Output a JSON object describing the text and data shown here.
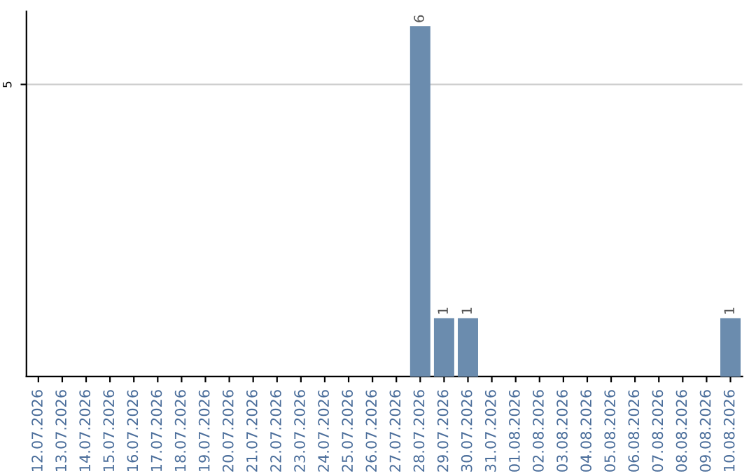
{
  "chart_data": {
    "type": "bar",
    "categories": [
      "12.07.2026",
      "13.07.2026",
      "14.07.2026",
      "15.07.2026",
      "16.07.2026",
      "17.07.2026",
      "18.07.2026",
      "19.07.2026",
      "20.07.2026",
      "21.07.2026",
      "22.07.2026",
      "23.07.2026",
      "24.07.2026",
      "25.07.2026",
      "26.07.2026",
      "27.07.2026",
      "28.07.2026",
      "29.07.2026",
      "30.07.2026",
      "31.07.2026",
      "01.08.2026",
      "02.08.2026",
      "03.08.2026",
      "04.08.2026",
      "05.08.2026",
      "06.08.2026",
      "07.08.2026",
      "08.08.2026",
      "09.08.2026",
      "10.08.2026"
    ],
    "values": [
      null,
      null,
      null,
      null,
      null,
      null,
      null,
      null,
      null,
      null,
      null,
      null,
      null,
      null,
      null,
      null,
      6,
      1,
      1,
      null,
      null,
      null,
      null,
      null,
      null,
      null,
      null,
      null,
      null,
      1
    ],
    "data_labels": true,
    "color": "#6b8cae",
    "ylim": [
      0,
      6.25
    ],
    "yticks": [
      5
    ],
    "grid": "y"
  }
}
